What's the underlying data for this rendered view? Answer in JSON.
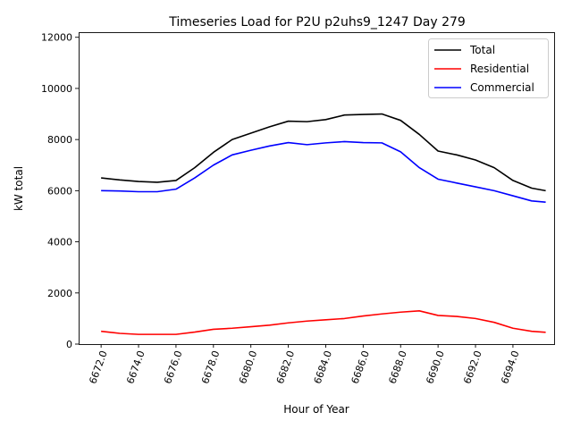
{
  "chart_data": {
    "type": "line",
    "title": "Timeseries Load for P2U p2uhs9_1247  Day 279",
    "xlabel": "Hour of Year",
    "ylabel": "kW total",
    "xlim": [
      6670.8,
      6696.2
    ],
    "ylim": [
      0,
      12200
    ],
    "xticks": [
      6672,
      6674,
      6676,
      6678,
      6680,
      6682,
      6684,
      6686,
      6688,
      6690,
      6692,
      6694
    ],
    "xtick_labels": [
      "6672.0",
      "6674.0",
      "6676.0",
      "6678.0",
      "6680.0",
      "6682.0",
      "6684.0",
      "6686.0",
      "6688.0",
      "6690.0",
      "6692.0",
      "6694.0"
    ],
    "yticks": [
      0,
      2000,
      4000,
      6000,
      8000,
      10000,
      12000
    ],
    "ytick_labels": [
      "0",
      "2000",
      "4000",
      "6000",
      "8000",
      "10000",
      "12000"
    ],
    "grid": false,
    "legend_position": "top-right",
    "x": [
      6672,
      6673,
      6674,
      6675,
      6676,
      6677,
      6678,
      6679,
      6680,
      6681,
      6682,
      6683,
      6684,
      6685,
      6686,
      6687,
      6688,
      6689,
      6690,
      6691,
      6692,
      6693,
      6694,
      6695,
      6695.75
    ],
    "series": [
      {
        "name": "Total",
        "color": "#000000",
        "values": [
          6500,
          6420,
          6360,
          6330,
          6400,
          6900,
          7500,
          8000,
          8250,
          8500,
          8720,
          8700,
          8780,
          8960,
          8980,
          9000,
          8750,
          8200,
          7550,
          7400,
          7200,
          6900,
          6400,
          6100,
          6000
        ]
      },
      {
        "name": "Residential",
        "color": "#ff0000",
        "values": [
          500,
          420,
          380,
          380,
          380,
          470,
          580,
          620,
          680,
          740,
          830,
          900,
          950,
          1000,
          1100,
          1180,
          1250,
          1300,
          1120,
          1080,
          1000,
          850,
          620,
          500,
          460
        ]
      },
      {
        "name": "Commercial",
        "color": "#0000ff",
        "values": [
          6000,
          5990,
          5960,
          5960,
          6060,
          6500,
          7000,
          7400,
          7580,
          7750,
          7880,
          7800,
          7870,
          7920,
          7880,
          7870,
          7520,
          6900,
          6450,
          6300,
          6150,
          6000,
          5800,
          5600,
          5550
        ]
      }
    ]
  }
}
